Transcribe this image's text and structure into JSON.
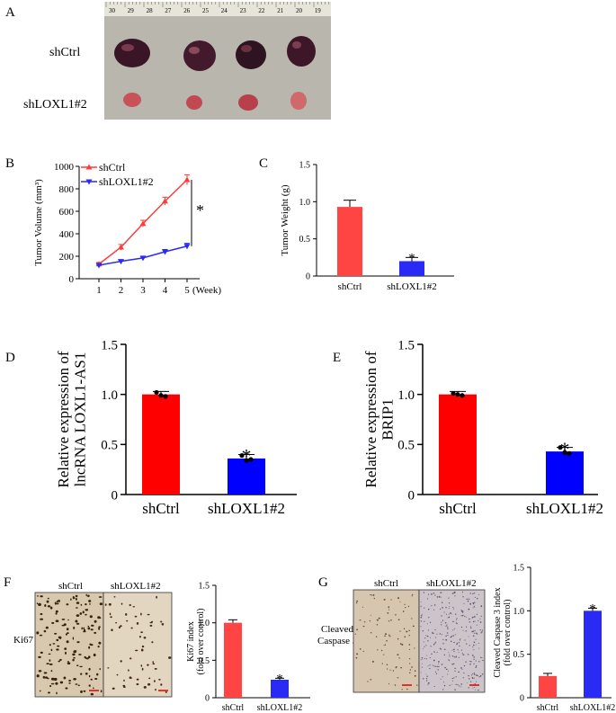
{
  "colors": {
    "red": "#ff3b3b",
    "blue": "#2a2af5",
    "axis": "#000000",
    "tray": "#b8b6ad",
    "ruler": "#e7e4da",
    "tumor_dark": "#3a1525",
    "tumor_small": "#c9525a",
    "ihc_bg": "#d8c8ae",
    "ihc_bg2": "#ccc4c8"
  },
  "panels": {
    "A": {
      "letter": "A",
      "row1": "shCtrl",
      "row2": "shLOXL1#2",
      "ruler_numbers": [
        "30",
        "29",
        "28",
        "27",
        "26",
        "25",
        "24",
        "23",
        "22",
        "21",
        "20",
        "19"
      ]
    },
    "B": {
      "letter": "B",
      "star": "*"
    },
    "C": {
      "letter": "C",
      "star": "*"
    },
    "D": {
      "letter": "D",
      "star": "*"
    },
    "E": {
      "letter": "E",
      "star": "*"
    },
    "F": {
      "letter": "F",
      "img_label1": "shCtrl",
      "img_label2": "shLOXL1#2",
      "side_label": "Ki67",
      "star": "*"
    },
    "G": {
      "letter": "G",
      "img_label1": "shCtrl",
      "img_label2": "shLOXL1#2",
      "side_label1": "Cleaved",
      "side_label2": "Caspase 3",
      "star": "*"
    }
  },
  "chart_data": [
    {
      "id": "B",
      "type": "line",
      "x": [
        1,
        2,
        3,
        4,
        5
      ],
      "xticks": [
        "1",
        "2",
        "3",
        "4",
        "5"
      ],
      "xlabel": "(Week)",
      "ylabel": "Tumor Volume (mm³)",
      "ylim": [
        0,
        1000
      ],
      "yticks": [
        "0",
        "200",
        "400",
        "600",
        "800",
        "1000"
      ],
      "legend_position": "top-left",
      "series": [
        {
          "name": "shCtrl",
          "values": [
            130,
            280,
            490,
            690,
            880
          ],
          "err": [
            15,
            25,
            30,
            35,
            45
          ],
          "color": "#ff3b3b",
          "marker": "triangle-up"
        },
        {
          "name": "shLOXL1#2",
          "values": [
            120,
            155,
            185,
            240,
            290
          ],
          "err": [
            10,
            10,
            12,
            20,
            25
          ],
          "color": "#2a2af5",
          "marker": "triangle-down"
        }
      ]
    },
    {
      "id": "C",
      "type": "bar",
      "categories": [
        "shCtrl",
        "shLOXL1#2"
      ],
      "values": [
        0.93,
        0.2
      ],
      "err": [
        0.09,
        0.05
      ],
      "colors": [
        "#ff4444",
        "#2a2af5"
      ],
      "ylabel": "Tumor Weight (g)",
      "ylim": [
        0,
        1.5
      ],
      "yticks": [
        "0",
        "0.5",
        "1.0",
        "1.5"
      ]
    },
    {
      "id": "D",
      "type": "bar",
      "categories": [
        "shCtrl",
        "shLOXL1#2"
      ],
      "values": [
        1.0,
        0.36
      ],
      "err": [
        0.03,
        0.04
      ],
      "points": [
        [
          1.02,
          0.99,
          0.98
        ],
        [
          0.39,
          0.34,
          0.35
        ]
      ],
      "colors": [
        "#ff0000",
        "#0000ff"
      ],
      "ylabel": [
        "Relative expression of",
        "lncRNA LOXL1-AS1"
      ],
      "ylim": [
        0,
        1.5
      ],
      "yticks": [
        "0",
        "0.5",
        "1.0",
        "1.5"
      ]
    },
    {
      "id": "E",
      "type": "bar",
      "categories": [
        "shCtrl",
        "shLOXL1#2"
      ],
      "values": [
        1.0,
        0.43
      ],
      "err": [
        0.03,
        0.04
      ],
      "points": [
        [
          1.01,
          1.0,
          0.99
        ],
        [
          0.47,
          0.42,
          0.41
        ]
      ],
      "colors": [
        "#ff0000",
        "#0000ff"
      ],
      "ylabel": [
        "Relative expression of",
        "BRIP1"
      ],
      "ylim": [
        0,
        1.5
      ],
      "yticks": [
        "0",
        "0.5",
        "1.0",
        "1.5"
      ]
    },
    {
      "id": "F",
      "type": "bar",
      "categories": [
        "shCtrl",
        "shLOXL1#2"
      ],
      "values": [
        1.0,
        0.24
      ],
      "err": [
        0.04,
        0.02
      ],
      "colors": [
        "#ff4444",
        "#2a2af5"
      ],
      "ylabel": [
        "Ki67 index",
        "(fold over control)"
      ],
      "ylim": [
        0,
        1.5
      ],
      "yticks": [
        "0",
        "0.5",
        "1.0",
        "1.5"
      ]
    },
    {
      "id": "G",
      "type": "bar",
      "categories": [
        "shCtrl",
        "shLOXL1#2"
      ],
      "values": [
        0.25,
        1.0
      ],
      "err": [
        0.03,
        0.03
      ],
      "colors": [
        "#ff4444",
        "#2a2af5"
      ],
      "ylabel": [
        "Cleaved Caspase 3 index",
        "(fold over control)"
      ],
      "ylim": [
        0,
        1.5
      ],
      "yticks": [
        "0",
        "0.5",
        "1.0",
        "1.5"
      ]
    }
  ]
}
